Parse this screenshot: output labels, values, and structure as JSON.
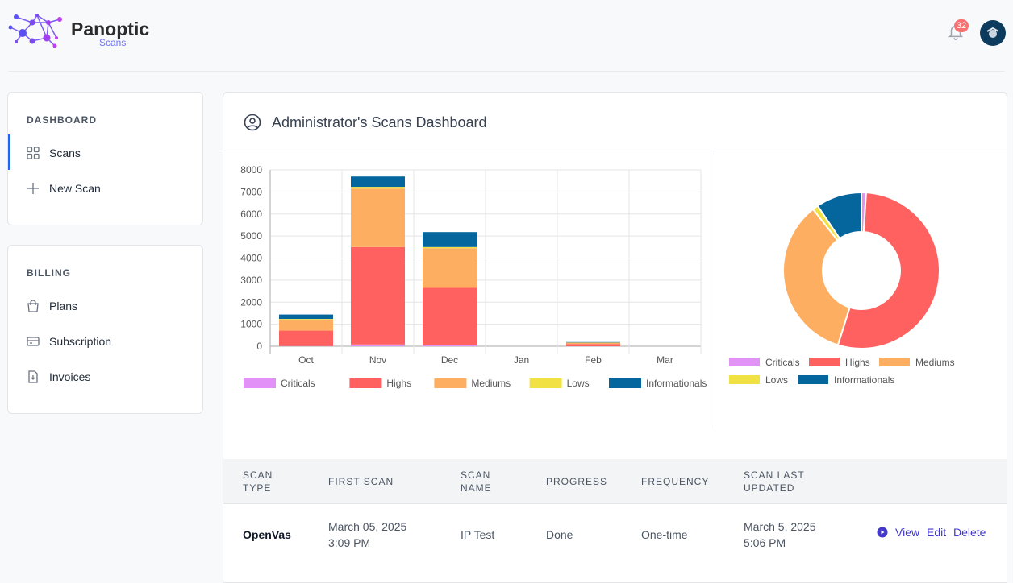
{
  "header": {
    "brand": "Panoptic",
    "brand_sub": "Scans",
    "notifications": "32"
  },
  "sidebar": {
    "dashboard_section": "DASHBOARD",
    "dashboard_items": [
      {
        "label": "Scans",
        "icon": "grid-icon"
      },
      {
        "label": "New Scan",
        "icon": "plus-icon"
      }
    ],
    "billing_section": "BILLING",
    "billing_items": [
      {
        "label": "Plans",
        "icon": "bag-icon"
      },
      {
        "label": "Subscription",
        "icon": "card-icon"
      },
      {
        "label": "Invoices",
        "icon": "invoice-icon"
      }
    ]
  },
  "main": {
    "title": "Administrator's Scans Dashboard"
  },
  "colors": {
    "Criticals": "#e291f7",
    "Highs": "#ff6060",
    "Mediums": "#fdae61",
    "Lows": "#f2e142",
    "Informationals": "#05669d"
  },
  "chart_data": [
    {
      "type": "bar",
      "stacked": true,
      "categories": [
        "Oct",
        "Nov",
        "Dec",
        "Jan",
        "Feb",
        "Mar"
      ],
      "ylim": [
        0,
        8000
      ],
      "yticks": [
        0,
        1000,
        2000,
        3000,
        4000,
        5000,
        6000,
        7000,
        8000
      ],
      "series": [
        {
          "name": "Criticals",
          "values": [
            10,
            80,
            50,
            0,
            0,
            0
          ]
        },
        {
          "name": "Highs",
          "values": [
            700,
            4420,
            2600,
            0,
            100,
            0
          ]
        },
        {
          "name": "Mediums",
          "values": [
            500,
            2650,
            1800,
            0,
            60,
            0
          ]
        },
        {
          "name": "Lows",
          "values": [
            30,
            80,
            50,
            0,
            10,
            0
          ]
        },
        {
          "name": "Informationals",
          "values": [
            200,
            470,
            680,
            0,
            20,
            0
          ]
        }
      ],
      "legend": "bottom"
    },
    {
      "type": "pie",
      "donut": true,
      "labels": [
        "Criticals",
        "Highs",
        "Mediums",
        "Lows",
        "Informationals"
      ],
      "values": [
        140,
        7820,
        5010,
        170,
        1370
      ],
      "legend": "bottom"
    }
  ],
  "table": {
    "headers": [
      [
        "SCAN",
        "TYPE"
      ],
      [
        "FIRST SCAN",
        ""
      ],
      [
        "SCAN",
        "NAME"
      ],
      [
        "PROGRESS",
        ""
      ],
      [
        "FREQUENCY",
        ""
      ],
      [
        "SCAN LAST",
        "UPDATED"
      ]
    ],
    "rows": [
      {
        "type": "OpenVas",
        "first_scan": [
          "March 05, 2025",
          "3:09 PM"
        ],
        "name": "IP Test",
        "progress": "Done",
        "frequency": "One-time",
        "updated": [
          "March 5, 2025",
          "5:06 PM"
        ],
        "actions": [
          "View",
          "Edit",
          "Delete"
        ]
      }
    ]
  }
}
